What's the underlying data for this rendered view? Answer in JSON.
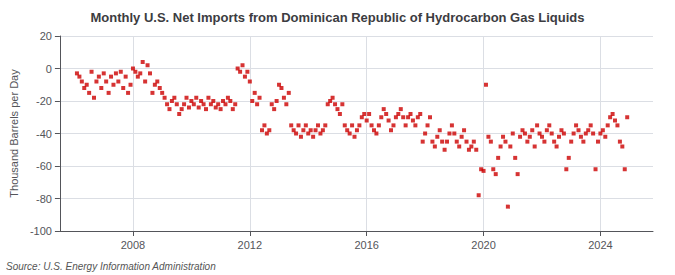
{
  "chart_data": {
    "type": "scatter",
    "title": "Monthly U.S. Net Imports from Dominican Republic of Hydrocarbon Gas Liquids",
    "ylabel": "Thousand Barrels per Day",
    "annotations": [
      "Source: U.S. Energy Information Administration"
    ],
    "color": "#cc0000",
    "marker": "square",
    "grid": true,
    "xlim": [
      2005.5,
      2025.8
    ],
    "xticks": [
      2008,
      2012,
      2016,
      2020,
      2024
    ],
    "ylim": [
      -100,
      20
    ],
    "yticks": [
      -100,
      -80,
      -60,
      -40,
      -20,
      0,
      20
    ],
    "x": [
      2006.083,
      2006.167,
      2006.25,
      2006.333,
      2006.417,
      2006.5,
      2006.583,
      2006.667,
      2006.75,
      2006.833,
      2006.917,
      2007.0,
      2007.083,
      2007.167,
      2007.25,
      2007.333,
      2007.417,
      2007.5,
      2007.583,
      2007.667,
      2007.75,
      2007.833,
      2007.917,
      2008.0,
      2008.083,
      2008.167,
      2008.25,
      2008.333,
      2008.417,
      2008.5,
      2008.583,
      2008.667,
      2008.75,
      2008.833,
      2008.917,
      2009.0,
      2009.083,
      2009.167,
      2009.25,
      2009.333,
      2009.417,
      2009.5,
      2009.583,
      2009.667,
      2009.75,
      2009.833,
      2009.917,
      2010.0,
      2010.083,
      2010.167,
      2010.25,
      2010.333,
      2010.417,
      2010.5,
      2010.583,
      2010.667,
      2010.75,
      2010.833,
      2010.917,
      2011.0,
      2011.083,
      2011.167,
      2011.25,
      2011.333,
      2011.417,
      2011.5,
      2011.583,
      2011.667,
      2011.75,
      2011.833,
      2011.917,
      2012.0,
      2012.083,
      2012.167,
      2012.25,
      2012.333,
      2012.417,
      2012.5,
      2012.583,
      2012.667,
      2012.75,
      2012.833,
      2012.917,
      2013.0,
      2013.083,
      2013.167,
      2013.25,
      2013.333,
      2013.417,
      2013.5,
      2013.583,
      2013.667,
      2013.75,
      2013.833,
      2013.917,
      2014.0,
      2014.083,
      2014.167,
      2014.25,
      2014.333,
      2014.417,
      2014.5,
      2014.583,
      2014.667,
      2014.75,
      2014.833,
      2014.917,
      2015.0,
      2015.083,
      2015.167,
      2015.25,
      2015.333,
      2015.417,
      2015.5,
      2015.583,
      2015.667,
      2015.75,
      2015.833,
      2015.917,
      2016.0,
      2016.083,
      2016.167,
      2016.25,
      2016.333,
      2016.417,
      2016.5,
      2016.583,
      2016.667,
      2016.75,
      2016.833,
      2016.917,
      2017.0,
      2017.083,
      2017.167,
      2017.25,
      2017.333,
      2017.417,
      2017.5,
      2017.583,
      2017.667,
      2017.75,
      2017.833,
      2017.917,
      2018.0,
      2018.083,
      2018.167,
      2018.25,
      2018.333,
      2018.417,
      2018.5,
      2018.583,
      2018.667,
      2018.75,
      2018.833,
      2018.917,
      2019.0,
      2019.083,
      2019.167,
      2019.25,
      2019.333,
      2019.417,
      2019.5,
      2019.583,
      2019.667,
      2019.75,
      2019.833,
      2019.917,
      2020.0,
      2020.083,
      2020.167,
      2020.25,
      2020.333,
      2020.417,
      2020.5,
      2020.583,
      2020.667,
      2020.75,
      2020.833,
      2020.917,
      2021.0,
      2021.083,
      2021.167,
      2021.25,
      2021.333,
      2021.417,
      2021.5,
      2021.583,
      2021.667,
      2021.75,
      2021.833,
      2021.917,
      2022.0,
      2022.083,
      2022.167,
      2022.25,
      2022.333,
      2022.417,
      2022.5,
      2022.583,
      2022.667,
      2022.75,
      2022.833,
      2022.917,
      2023.0,
      2023.083,
      2023.167,
      2023.25,
      2023.333,
      2023.417,
      2023.5,
      2023.583,
      2023.667,
      2023.75,
      2023.833,
      2023.917,
      2024.0,
      2024.083,
      2024.167,
      2024.25,
      2024.333,
      2024.417,
      2024.5,
      2024.583,
      2024.667,
      2024.75,
      2024.833,
      2024.917
    ],
    "values": [
      -3,
      -5,
      -8,
      -12,
      -10,
      -15,
      -2,
      -18,
      -8,
      -5,
      -12,
      -3,
      -8,
      -15,
      -5,
      -10,
      -3,
      -8,
      -2,
      -12,
      -5,
      -15,
      -10,
      0,
      -2,
      -5,
      -3,
      4,
      -8,
      2,
      -3,
      -15,
      -10,
      -8,
      -12,
      -15,
      -18,
      -22,
      -25,
      -20,
      -18,
      -22,
      -28,
      -25,
      -22,
      -18,
      -24,
      -20,
      -22,
      -18,
      -24,
      -20,
      -22,
      -25,
      -18,
      -22,
      -20,
      -24,
      -22,
      -25,
      -20,
      -22,
      -18,
      -20,
      -25,
      -22,
      0,
      -2,
      2,
      -5,
      -2,
      -8,
      -20,
      -15,
      -22,
      -18,
      -38,
      -35,
      -40,
      -38,
      -22,
      -25,
      -20,
      -10,
      -12,
      -18,
      -22,
      -15,
      -35,
      -38,
      -40,
      -35,
      -42,
      -38,
      -35,
      -40,
      -38,
      -42,
      -38,
      -35,
      -40,
      -38,
      -35,
      -22,
      -20,
      -18,
      -22,
      -25,
      -28,
      -22,
      -35,
      -38,
      -40,
      -35,
      -42,
      -38,
      -35,
      -30,
      -28,
      -32,
      -28,
      -35,
      -38,
      -40,
      -35,
      -30,
      -25,
      -28,
      -32,
      -38,
      -35,
      -30,
      -28,
      -25,
      -30,
      -35,
      -30,
      -28,
      -32,
      -35,
      -30,
      -28,
      -45,
      -40,
      -35,
      -30,
      -45,
      -48,
      -42,
      -38,
      -45,
      -50,
      -45,
      -40,
      -35,
      -40,
      -45,
      -48,
      -42,
      -38,
      -45,
      -50,
      -48,
      -45,
      -50,
      -78,
      -62,
      -63,
      -10,
      -42,
      -45,
      -62,
      -65,
      -55,
      -48,
      -42,
      -45,
      -85,
      -48,
      -40,
      -55,
      -65,
      -42,
      -38,
      -40,
      -45,
      -42,
      -38,
      -48,
      -35,
      -40,
      -42,
      -45,
      -38,
      -35,
      -40,
      -45,
      -48,
      -42,
      -38,
      -40,
      -62,
      -55,
      -45,
      -40,
      -35,
      -38,
      -42,
      -45,
      -40,
      -38,
      -35,
      -40,
      -62,
      -45,
      -40,
      -38,
      -42,
      -35,
      -30,
      -28,
      -32,
      -35,
      -45,
      -48,
      -62,
      -30
    ]
  }
}
